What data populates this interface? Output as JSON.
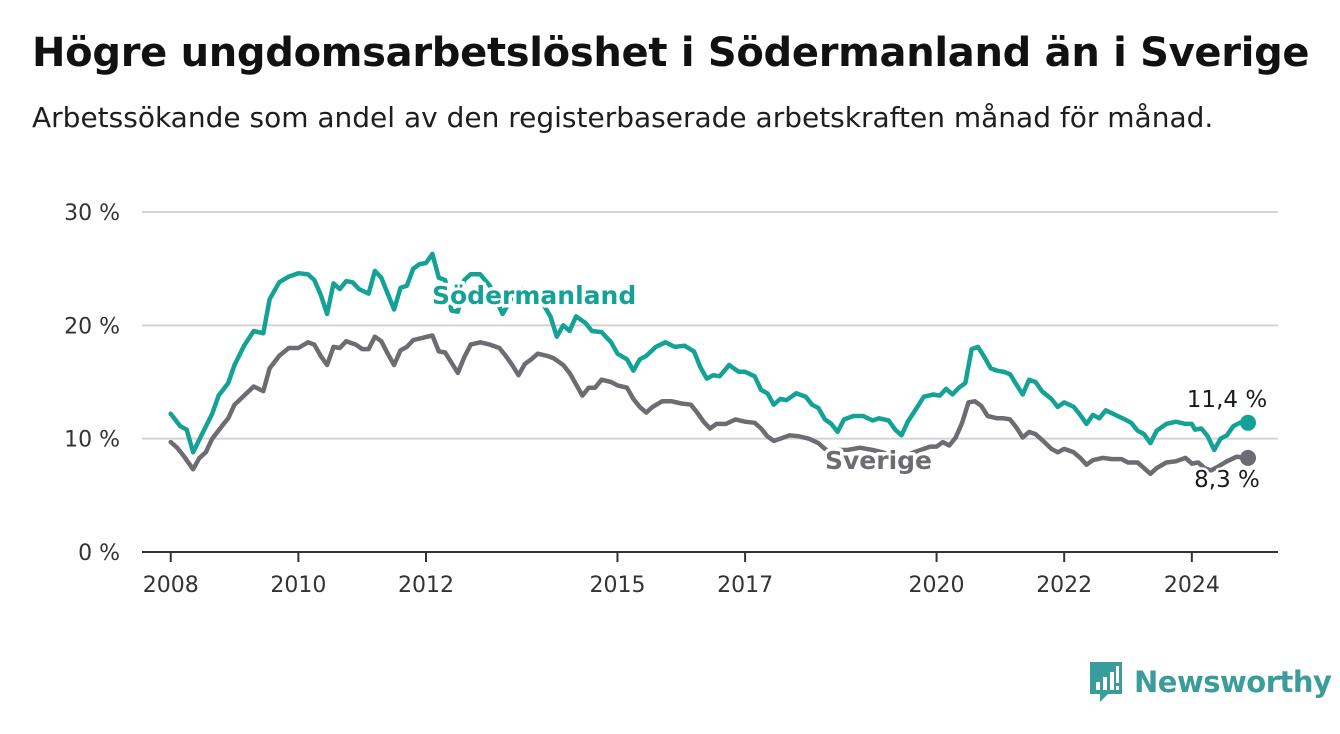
{
  "header": {
    "title": "Högre ungdomsarbetslöshet i Södermanland än i Sverige",
    "subtitle": "Arbetssökande som andel av den registerbaserade arbetskraften månad för månad."
  },
  "brand": {
    "name": "Newsworthy",
    "icon": "newsworthy-logo-icon",
    "color": "#3a9c9b"
  },
  "colors": {
    "sodermanland": "#14a297",
    "sverige": "#6e6c72",
    "grid": "#d4d4d4",
    "axis": "#333333"
  },
  "chart_data": {
    "type": "line",
    "ylim": [
      0,
      30
    ],
    "y_ticks": [
      {
        "value": 0,
        "label": "0 %"
      },
      {
        "value": 10,
        "label": "10 %"
      },
      {
        "value": 20,
        "label": "20 %"
      },
      {
        "value": 30,
        "label": "30 %"
      }
    ],
    "x_ticks": [
      {
        "value": 2008.0,
        "label": "2008"
      },
      {
        "value": 2010.0,
        "label": "2010"
      },
      {
        "value": 2012.0,
        "label": "2012"
      },
      {
        "value": 2015.0,
        "label": "2015"
      },
      {
        "value": 2017.0,
        "label": "2017"
      },
      {
        "value": 2020.0,
        "label": "2020"
      },
      {
        "value": 2022.0,
        "label": "2022"
      },
      {
        "value": 2024.0,
        "label": "2024"
      }
    ],
    "xlim": [
      2007.55,
      2025.35
    ],
    "grid": true,
    "series": [
      {
        "name": "Södermanland",
        "end_label": "11,4 %",
        "points": [
          [
            2008.0,
            12.2
          ],
          [
            2008.15,
            11.1
          ],
          [
            2008.25,
            10.8
          ],
          [
            2008.35,
            8.8
          ],
          [
            2008.5,
            10.5
          ],
          [
            2008.65,
            12.2
          ],
          [
            2008.75,
            13.8
          ],
          [
            2008.9,
            14.9
          ],
          [
            2009.0,
            16.5
          ],
          [
            2009.15,
            18.2
          ],
          [
            2009.3,
            19.5
          ],
          [
            2009.45,
            19.3
          ],
          [
            2009.55,
            22.3
          ],
          [
            2009.7,
            23.8
          ],
          [
            2009.85,
            24.3
          ],
          [
            2010.0,
            24.6
          ],
          [
            2010.15,
            24.5
          ],
          [
            2010.25,
            24.0
          ],
          [
            2010.35,
            22.7
          ],
          [
            2010.45,
            21.0
          ],
          [
            2010.55,
            23.7
          ],
          [
            2010.65,
            23.2
          ],
          [
            2010.75,
            23.9
          ],
          [
            2010.85,
            23.8
          ],
          [
            2010.95,
            23.2
          ],
          [
            2011.1,
            22.8
          ],
          [
            2011.2,
            24.8
          ],
          [
            2011.3,
            24.2
          ],
          [
            2011.4,
            22.8
          ],
          [
            2011.5,
            21.4
          ],
          [
            2011.6,
            23.3
          ],
          [
            2011.7,
            23.5
          ],
          [
            2011.8,
            25.0
          ],
          [
            2011.9,
            25.4
          ],
          [
            2012.0,
            25.5
          ],
          [
            2012.1,
            26.3
          ],
          [
            2012.2,
            24.2
          ],
          [
            2012.3,
            24.0
          ],
          [
            2012.4,
            21.3
          ],
          [
            2012.5,
            21.2
          ],
          [
            2012.6,
            24.0
          ],
          [
            2012.7,
            24.5
          ],
          [
            2012.85,
            24.5
          ],
          [
            2013.0,
            23.5
          ],
          [
            2013.1,
            22.2
          ],
          [
            2013.2,
            21.0
          ],
          [
            2013.35,
            22.5
          ],
          [
            2013.5,
            23.2
          ],
          [
            2013.65,
            22.3
          ],
          [
            2013.8,
            22.2
          ],
          [
            2013.95,
            20.8
          ],
          [
            2014.05,
            19.0
          ],
          [
            2014.15,
            20.0
          ],
          [
            2014.25,
            19.5
          ],
          [
            2014.35,
            20.8
          ],
          [
            2014.5,
            20.2
          ],
          [
            2014.6,
            19.5
          ],
          [
            2014.75,
            19.4
          ],
          [
            2014.9,
            18.5
          ],
          [
            2015.0,
            17.5
          ],
          [
            2015.15,
            17.0
          ],
          [
            2015.25,
            16.0
          ],
          [
            2015.35,
            17.0
          ],
          [
            2015.45,
            17.3
          ],
          [
            2015.6,
            18.1
          ],
          [
            2015.75,
            18.5
          ],
          [
            2015.9,
            18.1
          ],
          [
            2016.05,
            18.2
          ],
          [
            2016.2,
            17.7
          ],
          [
            2016.3,
            16.3
          ],
          [
            2016.4,
            15.3
          ],
          [
            2016.5,
            15.6
          ],
          [
            2016.6,
            15.5
          ],
          [
            2016.75,
            16.5
          ],
          [
            2016.9,
            15.9
          ],
          [
            2017.0,
            15.9
          ],
          [
            2017.15,
            15.5
          ],
          [
            2017.25,
            14.3
          ],
          [
            2017.35,
            14.0
          ],
          [
            2017.45,
            13.0
          ],
          [
            2017.55,
            13.5
          ],
          [
            2017.65,
            13.4
          ],
          [
            2017.8,
            14.0
          ],
          [
            2017.95,
            13.7
          ],
          [
            2018.05,
            13.0
          ],
          [
            2018.15,
            12.7
          ],
          [
            2018.25,
            11.7
          ],
          [
            2018.35,
            11.3
          ],
          [
            2018.45,
            10.6
          ],
          [
            2018.55,
            11.7
          ],
          [
            2018.7,
            12.0
          ],
          [
            2018.85,
            12.0
          ],
          [
            2019.0,
            11.6
          ],
          [
            2019.1,
            11.8
          ],
          [
            2019.25,
            11.6
          ],
          [
            2019.35,
            10.8
          ],
          [
            2019.45,
            10.3
          ],
          [
            2019.55,
            11.5
          ],
          [
            2019.7,
            12.8
          ],
          [
            2019.8,
            13.7
          ],
          [
            2019.95,
            13.9
          ],
          [
            2020.05,
            13.8
          ],
          [
            2020.15,
            14.4
          ],
          [
            2020.25,
            13.9
          ],
          [
            2020.35,
            14.5
          ],
          [
            2020.45,
            14.9
          ],
          [
            2020.55,
            17.9
          ],
          [
            2020.65,
            18.1
          ],
          [
            2020.75,
            17.2
          ],
          [
            2020.85,
            16.2
          ],
          [
            2020.95,
            16.0
          ],
          [
            2021.05,
            15.9
          ],
          [
            2021.15,
            15.7
          ],
          [
            2021.25,
            14.8
          ],
          [
            2021.35,
            13.9
          ],
          [
            2021.45,
            15.2
          ],
          [
            2021.55,
            15.0
          ],
          [
            2021.65,
            14.2
          ],
          [
            2021.8,
            13.5
          ],
          [
            2021.9,
            12.8
          ],
          [
            2022.0,
            13.2
          ],
          [
            2022.15,
            12.8
          ],
          [
            2022.25,
            12.1
          ],
          [
            2022.35,
            11.3
          ],
          [
            2022.45,
            12.1
          ],
          [
            2022.55,
            11.8
          ],
          [
            2022.65,
            12.5
          ],
          [
            2022.8,
            12.1
          ],
          [
            2022.95,
            11.7
          ],
          [
            2023.05,
            11.4
          ],
          [
            2023.15,
            10.7
          ],
          [
            2023.25,
            10.4
          ],
          [
            2023.35,
            9.6
          ],
          [
            2023.45,
            10.7
          ],
          [
            2023.6,
            11.3
          ],
          [
            2023.75,
            11.5
          ],
          [
            2023.9,
            11.3
          ],
          [
            2024.0,
            11.3
          ],
          [
            2024.05,
            10.8
          ],
          [
            2024.15,
            10.9
          ],
          [
            2024.25,
            10.2
          ],
          [
            2024.35,
            9.0
          ],
          [
            2024.45,
            10.0
          ],
          [
            2024.55,
            10.3
          ],
          [
            2024.65,
            11.1
          ],
          [
            2024.75,
            11.4
          ],
          [
            2024.88,
            11.4
          ]
        ]
      },
      {
        "name": "Sverige",
        "end_label": "8,3 %",
        "points": [
          [
            2008.0,
            9.7
          ],
          [
            2008.1,
            9.2
          ],
          [
            2008.2,
            8.5
          ],
          [
            2008.35,
            7.3
          ],
          [
            2008.45,
            8.3
          ],
          [
            2008.55,
            8.8
          ],
          [
            2008.65,
            10.0
          ],
          [
            2008.8,
            11.1
          ],
          [
            2008.9,
            11.8
          ],
          [
            2009.0,
            13.0
          ],
          [
            2009.15,
            13.8
          ],
          [
            2009.3,
            14.6
          ],
          [
            2009.45,
            14.2
          ],
          [
            2009.55,
            16.2
          ],
          [
            2009.7,
            17.3
          ],
          [
            2009.85,
            18.0
          ],
          [
            2010.0,
            18.0
          ],
          [
            2010.15,
            18.5
          ],
          [
            2010.25,
            18.3
          ],
          [
            2010.35,
            17.3
          ],
          [
            2010.45,
            16.5
          ],
          [
            2010.55,
            18.1
          ],
          [
            2010.65,
            18.0
          ],
          [
            2010.75,
            18.6
          ],
          [
            2010.9,
            18.3
          ],
          [
            2011.0,
            17.9
          ],
          [
            2011.1,
            17.9
          ],
          [
            2011.2,
            19.0
          ],
          [
            2011.3,
            18.6
          ],
          [
            2011.4,
            17.5
          ],
          [
            2011.5,
            16.5
          ],
          [
            2011.6,
            17.8
          ],
          [
            2011.7,
            18.1
          ],
          [
            2011.8,
            18.7
          ],
          [
            2011.95,
            18.9
          ],
          [
            2012.1,
            19.1
          ],
          [
            2012.2,
            17.7
          ],
          [
            2012.3,
            17.6
          ],
          [
            2012.4,
            16.7
          ],
          [
            2012.5,
            15.8
          ],
          [
            2012.6,
            17.2
          ],
          [
            2012.7,
            18.3
          ],
          [
            2012.85,
            18.5
          ],
          [
            2013.0,
            18.3
          ],
          [
            2013.15,
            18.0
          ],
          [
            2013.25,
            17.3
          ],
          [
            2013.35,
            16.5
          ],
          [
            2013.45,
            15.6
          ],
          [
            2013.55,
            16.6
          ],
          [
            2013.65,
            17.0
          ],
          [
            2013.75,
            17.5
          ],
          [
            2013.9,
            17.3
          ],
          [
            2014.0,
            17.1
          ],
          [
            2014.15,
            16.5
          ],
          [
            2014.25,
            15.8
          ],
          [
            2014.35,
            14.8
          ],
          [
            2014.45,
            13.8
          ],
          [
            2014.55,
            14.5
          ],
          [
            2014.65,
            14.5
          ],
          [
            2014.75,
            15.2
          ],
          [
            2014.9,
            15.0
          ],
          [
            2015.0,
            14.7
          ],
          [
            2015.15,
            14.5
          ],
          [
            2015.25,
            13.5
          ],
          [
            2015.35,
            12.8
          ],
          [
            2015.45,
            12.3
          ],
          [
            2015.55,
            12.8
          ],
          [
            2015.7,
            13.3
          ],
          [
            2015.85,
            13.3
          ],
          [
            2016.0,
            13.1
          ],
          [
            2016.15,
            13.0
          ],
          [
            2016.25,
            12.3
          ],
          [
            2016.35,
            11.5
          ],
          [
            2016.45,
            10.9
          ],
          [
            2016.55,
            11.3
          ],
          [
            2016.7,
            11.3
          ],
          [
            2016.85,
            11.7
          ],
          [
            2017.0,
            11.5
          ],
          [
            2017.15,
            11.4
          ],
          [
            2017.25,
            10.9
          ],
          [
            2017.35,
            10.2
          ],
          [
            2017.45,
            9.8
          ],
          [
            2017.55,
            10.0
          ],
          [
            2017.7,
            10.3
          ],
          [
            2017.85,
            10.2
          ],
          [
            2018.0,
            10.0
          ],
          [
            2018.15,
            9.6
          ],
          [
            2018.25,
            9.1
          ],
          [
            2018.35,
            8.7
          ],
          [
            2018.45,
            9.0
          ],
          [
            2018.6,
            9.0
          ],
          [
            2018.8,
            9.2
          ],
          [
            2019.0,
            9.0
          ],
          [
            2019.15,
            8.8
          ],
          [
            2019.3,
            8.5
          ],
          [
            2019.45,
            8.3
          ],
          [
            2019.6,
            8.7
          ],
          [
            2019.75,
            9.0
          ],
          [
            2019.9,
            9.3
          ],
          [
            2020.0,
            9.3
          ],
          [
            2020.1,
            9.7
          ],
          [
            2020.2,
            9.4
          ],
          [
            2020.3,
            10.1
          ],
          [
            2020.4,
            11.4
          ],
          [
            2020.5,
            13.2
          ],
          [
            2020.6,
            13.3
          ],
          [
            2020.7,
            12.9
          ],
          [
            2020.8,
            12.0
          ],
          [
            2020.95,
            11.8
          ],
          [
            2021.05,
            11.8
          ],
          [
            2021.15,
            11.7
          ],
          [
            2021.25,
            11.0
          ],
          [
            2021.35,
            10.1
          ],
          [
            2021.45,
            10.6
          ],
          [
            2021.55,
            10.4
          ],
          [
            2021.65,
            9.9
          ],
          [
            2021.8,
            9.1
          ],
          [
            2021.9,
            8.8
          ],
          [
            2022.0,
            9.1
          ],
          [
            2022.15,
            8.8
          ],
          [
            2022.25,
            8.3
          ],
          [
            2022.35,
            7.7
          ],
          [
            2022.45,
            8.1
          ],
          [
            2022.6,
            8.3
          ],
          [
            2022.75,
            8.2
          ],
          [
            2022.9,
            8.2
          ],
          [
            2023.0,
            7.9
          ],
          [
            2023.15,
            7.9
          ],
          [
            2023.25,
            7.4
          ],
          [
            2023.35,
            6.9
          ],
          [
            2023.45,
            7.4
          ],
          [
            2023.6,
            7.9
          ],
          [
            2023.75,
            8.0
          ],
          [
            2023.9,
            8.3
          ],
          [
            2024.0,
            7.8
          ],
          [
            2024.1,
            7.9
          ],
          [
            2024.2,
            7.4
          ],
          [
            2024.3,
            7.2
          ],
          [
            2024.4,
            7.5
          ],
          [
            2024.55,
            8.0
          ],
          [
            2024.7,
            8.4
          ],
          [
            2024.88,
            8.3
          ]
        ]
      }
    ]
  }
}
